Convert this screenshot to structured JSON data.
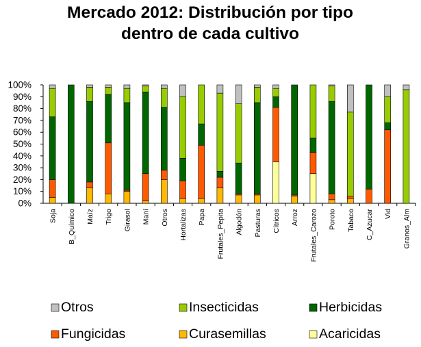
{
  "chart_data": {
    "type": "bar",
    "stacked": true,
    "title_lines": [
      "Mercado 2012: Distribución por tipo",
      "dentro de cada cultivo"
    ],
    "ylim": [
      0,
      100
    ],
    "yticks": [
      "0%",
      "10%",
      "20%",
      "30%",
      "40%",
      "50%",
      "60%",
      "70%",
      "80%",
      "90%",
      "100%"
    ],
    "categories": [
      "Soja",
      "B_Químico",
      "Maíz",
      "Trigo",
      "Girasol",
      "Maní",
      "Otros",
      "Hortalizas",
      "Papa",
      "Frutales_Pepita",
      "Algodón",
      "Pasturas",
      "Cítricos",
      "Arroz",
      "Frutales_Carozo",
      "Poroto",
      "Tabaco",
      "C_Azucar",
      "Vid",
      "Granos_Alm"
    ],
    "series": [
      {
        "name": "Acaricidas",
        "color": "#ffff99",
        "values": [
          0,
          0,
          0,
          0,
          0,
          0,
          0,
          0,
          0,
          0,
          0,
          0,
          35,
          0,
          25,
          0,
          0,
          0,
          0,
          0
        ]
      },
      {
        "name": "Curasemillas",
        "color": "#ffb900",
        "values": [
          5,
          0,
          13,
          8,
          10,
          2,
          20,
          4,
          4,
          13,
          7,
          7,
          0,
          6,
          0,
          3,
          4,
          0,
          0,
          0
        ]
      },
      {
        "name": "Fungicidas",
        "color": "#ff5a00",
        "values": [
          15,
          0,
          5,
          43,
          1,
          23,
          8,
          15,
          45,
          9,
          1,
          1,
          46,
          1,
          18,
          5,
          2,
          12,
          62,
          0
        ]
      },
      {
        "name": "Herbicidas",
        "color": "#006600",
        "values": [
          53,
          100,
          68,
          41,
          74,
          69,
          53,
          19,
          18,
          5,
          26,
          77,
          9,
          93,
          12,
          78,
          0,
          88,
          6,
          0
        ]
      },
      {
        "name": "Insecticidas",
        "color": "#99cc00",
        "values": [
          24,
          0,
          12,
          6,
          12,
          5,
          16,
          52,
          33,
          66,
          50,
          13,
          7,
          0,
          45,
          13,
          71,
          0,
          22,
          96
        ]
      },
      {
        "name": "Otros",
        "color": "#c0c0c0",
        "values": [
          3,
          0,
          2,
          2,
          3,
          1,
          3,
          10,
          0,
          7,
          16,
          2,
          3,
          0,
          0,
          1,
          23,
          0,
          10,
          4
        ]
      }
    ],
    "legend": {
      "order": [
        "Otros",
        "Insecticidas",
        "Herbicidas",
        "Fungicidas",
        "Curasemillas",
        "Acaricidas"
      ],
      "placement": "bottom"
    },
    "grid": false
  }
}
